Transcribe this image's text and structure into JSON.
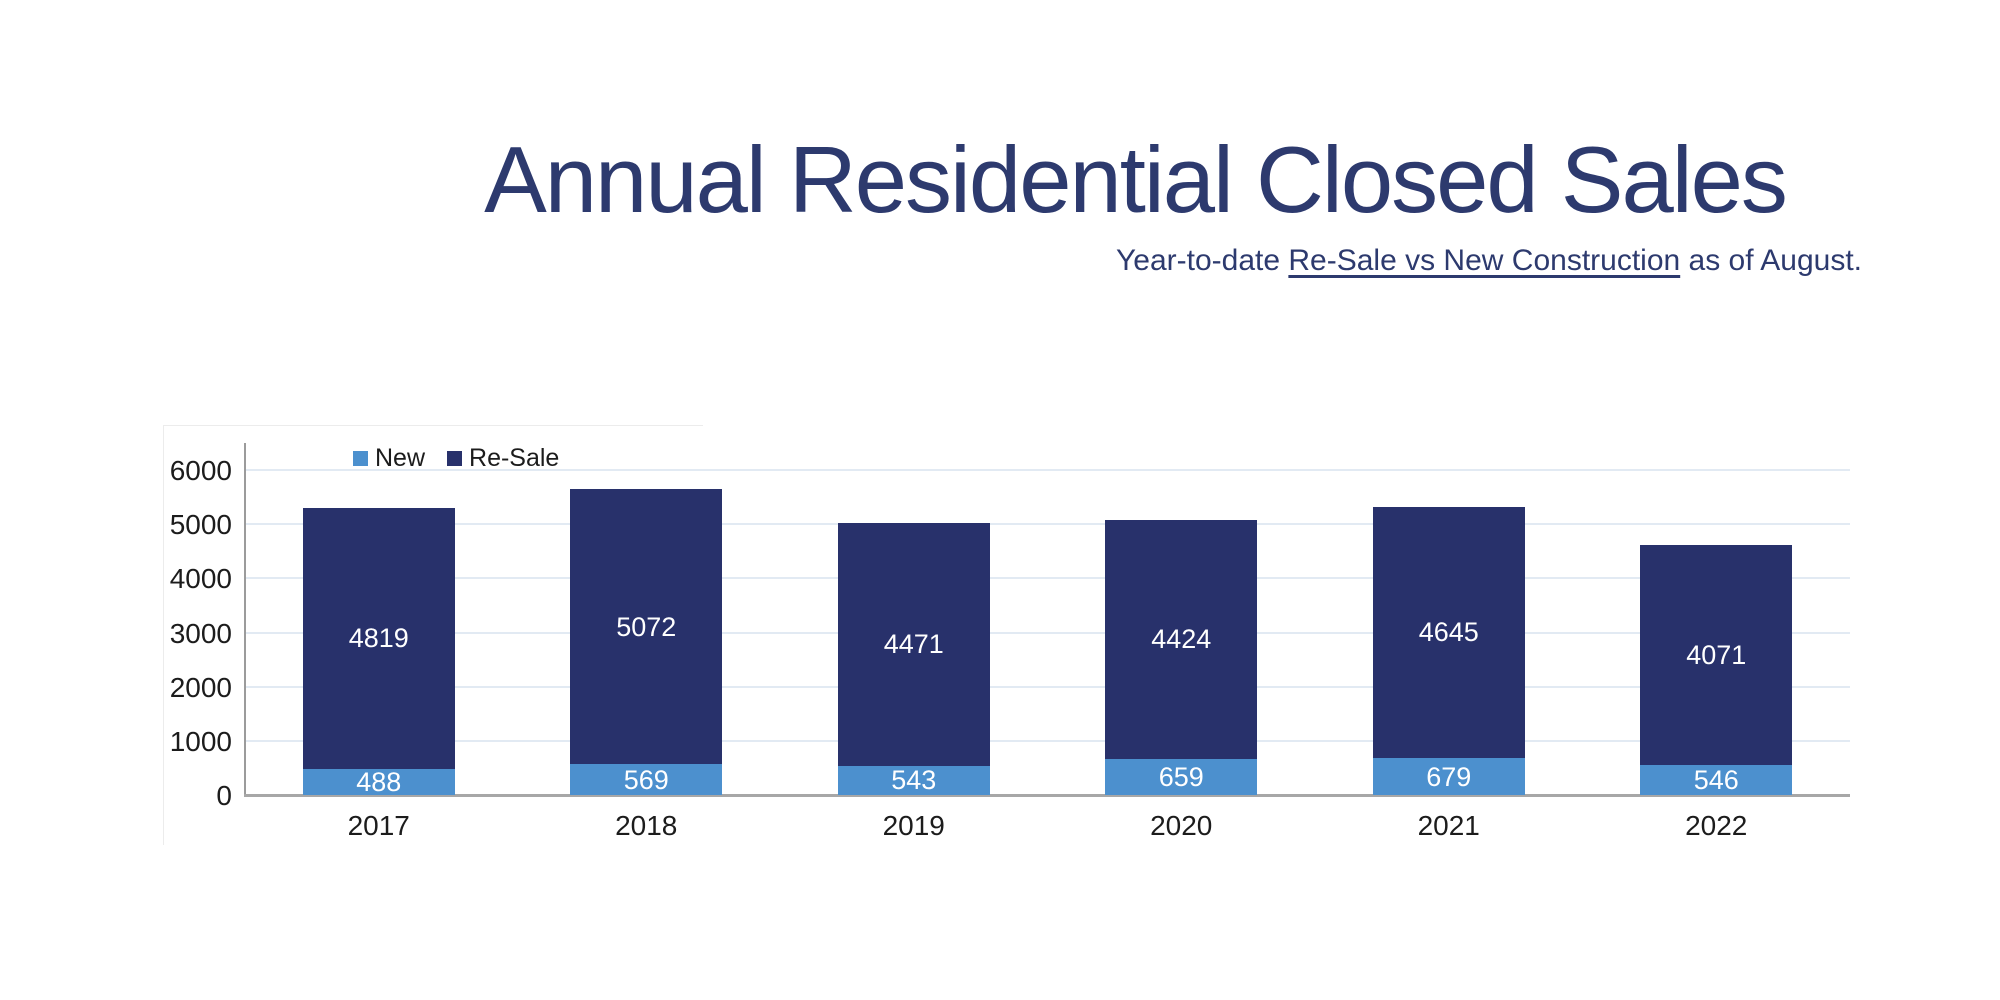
{
  "title": "Annual Residential Closed Sales",
  "subtitle": {
    "prefix": "Year-to-date ",
    "underlined": "Re-Sale vs New Construction",
    "suffix": " as of August."
  },
  "legend": [
    {
      "label": "New",
      "color": "#4C90CE"
    },
    {
      "label": "Re-Sale",
      "color": "#28316B"
    }
  ],
  "colors": {
    "new_series": "#4C90CE",
    "resale_series": "#28316B",
    "title_text": "#2D3A6E",
    "gridline": "#E2EAF3",
    "baseline": "#A7A7A7",
    "axis_line": "#9B9B9B",
    "tick_text": "#1C1C1C",
    "bar_value_text": "#FFFFFF"
  },
  "chart_data": {
    "type": "bar",
    "stacked": true,
    "title": "Annual Residential Closed Sales",
    "subtitle": "Year-to-date Re-Sale vs New Construction as of August.",
    "categories": [
      "2017",
      "2018",
      "2019",
      "2020",
      "2021",
      "2022"
    ],
    "series": [
      {
        "name": "New",
        "color": "#4C90CE",
        "values": [
          488,
          569,
          543,
          659,
          679,
          546
        ]
      },
      {
        "name": "Re-Sale",
        "color": "#28316B",
        "values": [
          4819,
          5072,
          4471,
          4424,
          4645,
          4071
        ]
      }
    ],
    "totals": [
      5307,
      5641,
      5014,
      5083,
      5324,
      4617
    ],
    "ylim": [
      0,
      6000
    ],
    "yticks": [
      0,
      1000,
      2000,
      3000,
      4000,
      5000,
      6000
    ],
    "xlabel": "",
    "ylabel": "",
    "grid": true,
    "legend_position": "top-left-inside"
  }
}
